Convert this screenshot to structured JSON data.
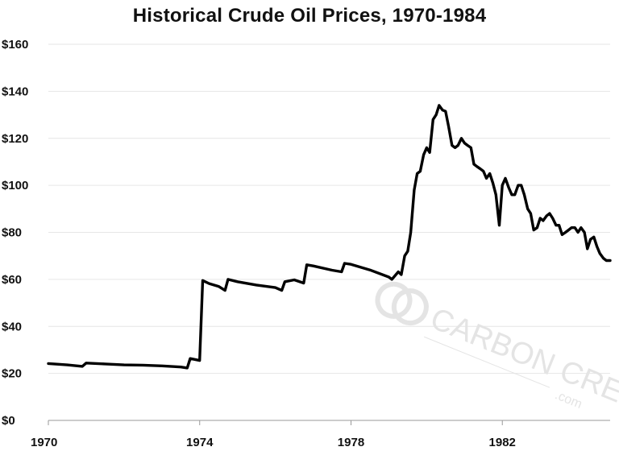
{
  "chart_data": {
    "type": "line",
    "title": "Historical Crude Oil Prices, 1970-1984",
    "xlabel": "",
    "ylabel": "",
    "xlim": [
      1970,
      1984.85
    ],
    "ylim": [
      0,
      160
    ],
    "x_ticks": [
      1970,
      1974,
      1978,
      1982
    ],
    "x_tick_labels": [
      "1970",
      "1974",
      "1978",
      "1982"
    ],
    "y_ticks": [
      0,
      20,
      40,
      60,
      80,
      100,
      120,
      140,
      160
    ],
    "y_tick_labels": [
      "$0",
      "$20",
      "$40",
      "$60",
      "$80",
      "$100",
      "$120",
      "$140",
      "$160"
    ],
    "grid": true,
    "line_color": "#000000",
    "series": [
      {
        "x": [
          1970.0,
          1970.5,
          1970.9,
          1971.0,
          1971.5,
          1972.0,
          1972.5,
          1973.0,
          1973.5,
          1973.67,
          1973.75,
          1974.0,
          1974.08,
          1974.25,
          1974.5,
          1974.67,
          1974.75,
          1975.0,
          1975.5,
          1976.0,
          1976.17,
          1976.25,
          1976.5,
          1976.75,
          1976.83,
          1977.0,
          1977.5,
          1977.75,
          1977.83,
          1978.0,
          1978.5,
          1979.0,
          1979.08,
          1979.25,
          1979.33,
          1979.42,
          1979.5,
          1979.58,
          1979.67,
          1979.75,
          1979.83,
          1979.92,
          1980.0,
          1980.08,
          1980.17,
          1980.25,
          1980.33,
          1980.42,
          1980.5,
          1980.58,
          1980.67,
          1980.75,
          1980.83,
          1980.92,
          1981.0,
          1981.08,
          1981.17,
          1981.25,
          1981.33,
          1981.42,
          1981.5,
          1981.58,
          1981.67,
          1981.75,
          1981.83,
          1981.92,
          1982.0,
          1982.08,
          1982.17,
          1982.25,
          1982.33,
          1982.42,
          1982.5,
          1982.58,
          1982.67,
          1982.75,
          1982.83,
          1982.92,
          1983.0,
          1983.08,
          1983.17,
          1983.25,
          1983.33,
          1983.42,
          1983.5,
          1983.58,
          1983.67,
          1983.75,
          1983.83,
          1983.92,
          1984.0,
          1984.08,
          1984.17,
          1984.25,
          1984.33,
          1984.42,
          1984.5,
          1984.58,
          1984.67,
          1984.75,
          1984.85
        ],
        "y": [
          24.2,
          23.6,
          23.0,
          24.4,
          24.0,
          23.6,
          23.5,
          23.2,
          22.7,
          22.3,
          26.3,
          25.5,
          59.5,
          58.2,
          57.0,
          55.3,
          60.0,
          59.0,
          57.6,
          56.5,
          55.3,
          59.0,
          59.8,
          58.4,
          66.2,
          65.7,
          63.9,
          63.2,
          66.8,
          66.4,
          64.0,
          61.0,
          60.0,
          63.2,
          62.0,
          70.0,
          72.0,
          80.0,
          98.0,
          105.0,
          106.0,
          113.0,
          116.0,
          114.0,
          128.0,
          130.0,
          134.0,
          132.0,
          131.5,
          125.0,
          117.0,
          116.0,
          117.0,
          120.0,
          118.0,
          117.0,
          116.0,
          109.0,
          108.0,
          107.0,
          106.0,
          103.0,
          105.0,
          101.0,
          96.0,
          83.0,
          100.0,
          103.0,
          99.0,
          96.0,
          96.0,
          100.0,
          100.0,
          96.0,
          90.0,
          88.0,
          81.0,
          82.0,
          86.0,
          85.0,
          87.0,
          88.0,
          86.0,
          83.0,
          83.0,
          79.0,
          80.0,
          81.0,
          82.0,
          82.0,
          80.0,
          82.0,
          80.0,
          73.0,
          77.0,
          78.0,
          74.0,
          71.0,
          69.0,
          68.0,
          68.0
        ]
      }
    ]
  },
  "watermark": {
    "line1": "CARBON CREDITS",
    "line2": ".com",
    "color": "#e4e4e4",
    "icon": "carbon-credits-logo-icon"
  }
}
